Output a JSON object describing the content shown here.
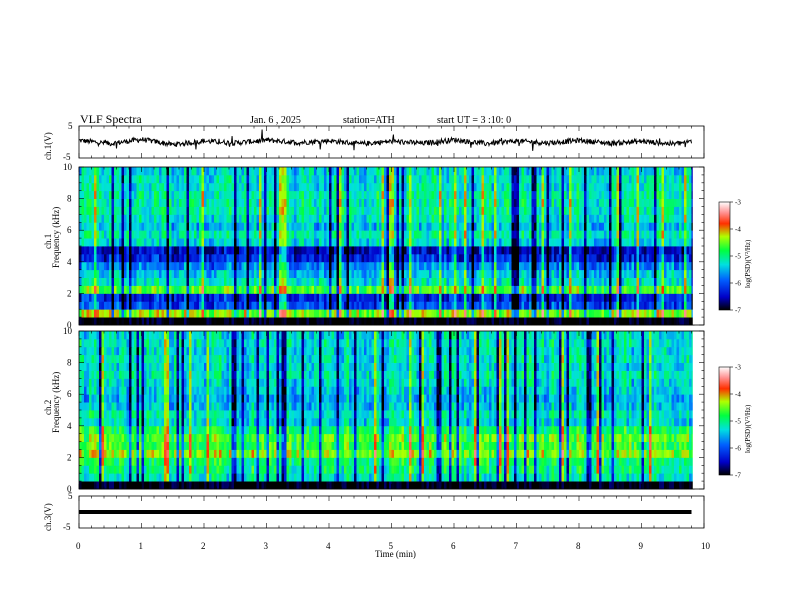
{
  "header": {
    "title": "VLF Spectra",
    "date": "Jan. 6 , 2025",
    "station": "station=ATH",
    "start": "start UT = 3 :10: 0"
  },
  "chart_data": [
    {
      "type": "line",
      "name": "ch1-waveform",
      "ylabel": "ch.1(V)",
      "ylim": [
        -5,
        5
      ],
      "yticks": [
        "5",
        "-5"
      ],
      "x": [
        0,
        0.5,
        1,
        1.5,
        2,
        2.5,
        3,
        3.5,
        4,
        4.5,
        5,
        5.5,
        6,
        6.5,
        7,
        7.5,
        8,
        8.5,
        9,
        9.5,
        9.8
      ],
      "values": [
        0.5,
        -0.5,
        0.8,
        -0.8,
        0.3,
        -0.3,
        0.6,
        -0.2,
        0.4,
        -0.6,
        0.2,
        -0.4,
        0.7,
        -0.5,
        0.3,
        -0.3,
        0.5,
        -0.4,
        0.2,
        -0.6,
        0.1
      ]
    },
    {
      "type": "heatmap",
      "name": "ch1-spectrogram",
      "ylabel": "ch.1",
      "ylabel2": "Frequency (kHz)",
      "ylim": [
        0,
        10
      ],
      "yticks": [
        "0",
        "2",
        "4",
        "6",
        "8",
        "10"
      ],
      "colorbar": {
        "label": "log(PSD)(V²/Hz)",
        "ticks": [
          "-3",
          "-4",
          "-5",
          "-6",
          "-7"
        ],
        "range": [
          -7,
          -3
        ]
      },
      "levels_khz": [
        {
          "f": 0.25,
          "v": -7.0
        },
        {
          "f": 0.75,
          "v": -4.6
        },
        {
          "f": 1.25,
          "v": -6.1
        },
        {
          "f": 1.75,
          "v": -6.3
        },
        {
          "f": 2.25,
          "v": -4.8
        },
        {
          "f": 2.75,
          "v": -5.4
        },
        {
          "f": 3.25,
          "v": -5.6
        },
        {
          "f": 3.75,
          "v": -5.9
        },
        {
          "f": 4.25,
          "v": -6.3
        },
        {
          "f": 4.75,
          "v": -6.5
        },
        {
          "f": 5.25,
          "v": -5.5
        },
        {
          "f": 5.75,
          "v": -5.3
        },
        {
          "f": 6.25,
          "v": -5.6
        },
        {
          "f": 6.75,
          "v": -5.4
        },
        {
          "f": 7.25,
          "v": -5.3
        },
        {
          "f": 7.75,
          "v": -5.3
        },
        {
          "f": 8.25,
          "v": -5.3
        },
        {
          "f": 8.75,
          "v": -5.4
        },
        {
          "f": 9.25,
          "v": -5.4
        },
        {
          "f": 9.75,
          "v": -5.5
        }
      ]
    },
    {
      "type": "heatmap",
      "name": "ch2-spectrogram",
      "ylabel": "ch.2",
      "ylabel2": "Frequency (kHz)",
      "ylim": [
        0,
        10
      ],
      "yticks": [
        "0",
        "2",
        "4",
        "6",
        "8",
        "10"
      ],
      "colorbar": {
        "label": "log(PSD)(V²/Hz)",
        "ticks": [
          "-3",
          "-4",
          "-5",
          "-6",
          "-7"
        ],
        "range": [
          -7,
          -3
        ]
      },
      "levels_khz": [
        {
          "f": 0.25,
          "v": -7.0
        },
        {
          "f": 0.75,
          "v": -5.4
        },
        {
          "f": 1.25,
          "v": -5.2
        },
        {
          "f": 1.75,
          "v": -5.1
        },
        {
          "f": 2.25,
          "v": -4.6
        },
        {
          "f": 2.75,
          "v": -4.9
        },
        {
          "f": 3.25,
          "v": -4.8
        },
        {
          "f": 3.75,
          "v": -5.1
        },
        {
          "f": 4.25,
          "v": -5.5
        },
        {
          "f": 4.75,
          "v": -5.4
        },
        {
          "f": 5.25,
          "v": -5.6
        },
        {
          "f": 5.75,
          "v": -5.7
        },
        {
          "f": 6.25,
          "v": -5.6
        },
        {
          "f": 6.75,
          "v": -5.5
        },
        {
          "f": 7.25,
          "v": -5.4
        },
        {
          "f": 7.75,
          "v": -5.5
        },
        {
          "f": 8.25,
          "v": -5.4
        },
        {
          "f": 8.75,
          "v": -5.5
        },
        {
          "f": 9.25,
          "v": -5.4
        },
        {
          "f": 9.75,
          "v": -5.5
        }
      ]
    },
    {
      "type": "line",
      "name": "ch3-waveform",
      "ylabel": "ch.3(V)",
      "ylim": [
        -5,
        5
      ],
      "yticks": [
        "5",
        "-5"
      ],
      "x": [
        0,
        9.8
      ],
      "values": [
        0,
        0
      ]
    }
  ],
  "time_axis": {
    "label": "Time (min)",
    "range": [
      0,
      10
    ],
    "ticks": [
      "0",
      "1",
      "2",
      "3",
      "4",
      "5",
      "6",
      "7",
      "8",
      "9",
      "10"
    ]
  }
}
